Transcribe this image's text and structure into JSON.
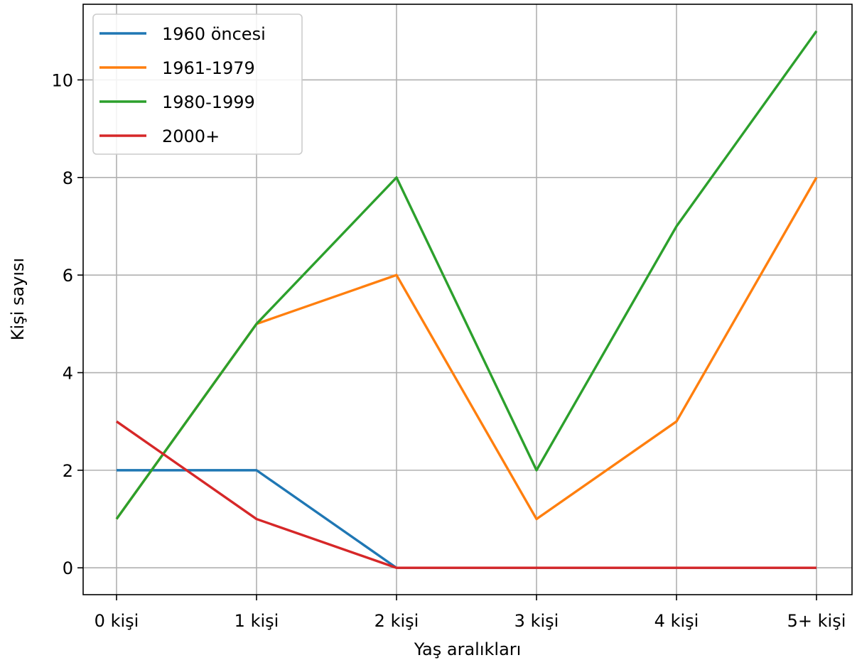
{
  "chart_data": {
    "type": "line",
    "title": "",
    "xlabel": "Yaş aralıkları",
    "ylabel": "Kişi sayısı",
    "categories": [
      "0 kişi",
      "1 kişi",
      "2 kişi",
      "3 kişi",
      "4 kişi",
      "5+ kişi"
    ],
    "yticks": [
      "0",
      "2",
      "4",
      "6",
      "8",
      "10"
    ],
    "ylim": [
      -0.55,
      11.55
    ],
    "grid": true,
    "legend_position": "upper-left",
    "series": [
      {
        "name": "1960 öncesi",
        "color": "#1f77b4",
        "values": [
          2,
          2,
          0,
          0,
          0,
          0
        ]
      },
      {
        "name": "1961-1979",
        "color": "#ff7f0e",
        "values": [
          1,
          5,
          6,
          1,
          3,
          8
        ]
      },
      {
        "name": "1980-1999",
        "color": "#2ca02c",
        "values": [
          1,
          5,
          8,
          2,
          7,
          11
        ]
      },
      {
        "name": "2000+",
        "color": "#d62728",
        "values": [
          3,
          1,
          0,
          0,
          0,
          0
        ]
      }
    ]
  }
}
